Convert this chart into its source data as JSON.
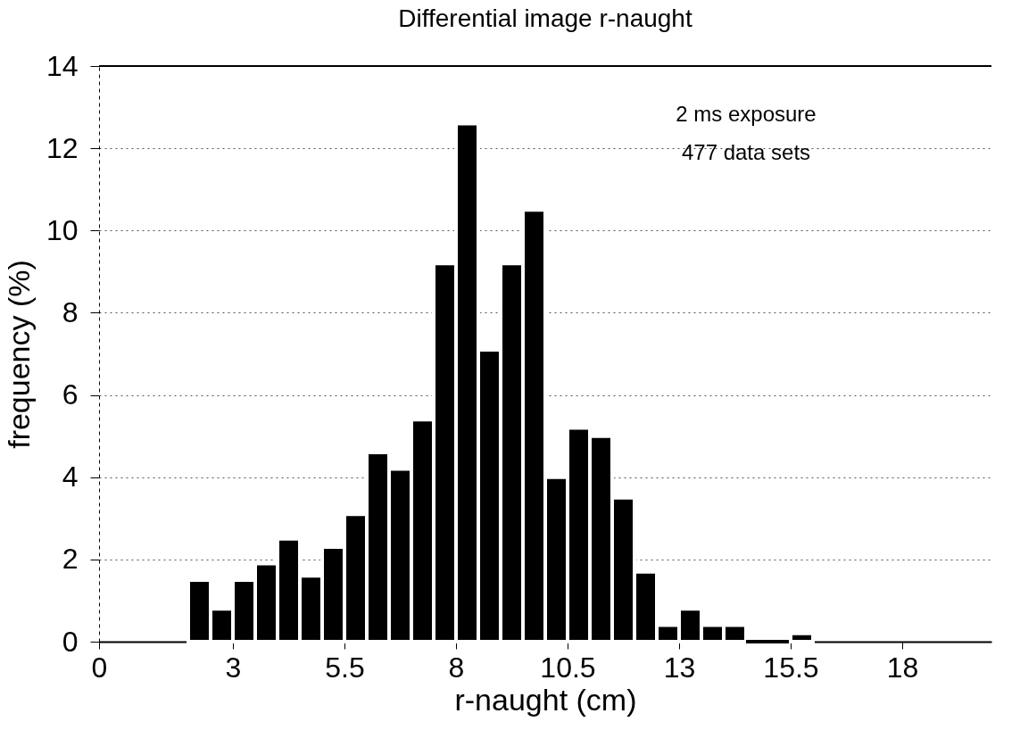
{
  "chart_data": {
    "type": "histogram",
    "title": "Differential image r-naught",
    "xlabel": "r-naught (cm)",
    "ylabel": "frequency (%)",
    "bins": [
      2,
      2.5,
      3,
      3.5,
      4,
      4.5,
      5,
      5.5,
      6,
      6.5,
      7,
      7.5,
      8,
      8.5,
      9,
      9.5,
      10,
      10.5,
      11,
      11.5,
      12,
      12.5,
      13,
      13.5,
      14,
      14.5,
      15,
      15.5,
      16
    ],
    "values": [
      1.5,
      0.8,
      1.5,
      1.9,
      2.5,
      1.6,
      2.3,
      3.1,
      4.6,
      4.2,
      5.4,
      9.2,
      12.6,
      7.1,
      9.2,
      10.5,
      4.0,
      5.2,
      5.0,
      3.5,
      1.7,
      0.4,
      0.8,
      0.4,
      0.4,
      0,
      0,
      0.2
    ],
    "color": "#000000",
    "xlim": [
      0,
      20
    ],
    "xticks": [
      0,
      3,
      5.5,
      8,
      10.5,
      13,
      15.5,
      18
    ],
    "ylim": [
      0,
      14
    ],
    "yticks": [
      0,
      2,
      4,
      6,
      8,
      10,
      12,
      14
    ],
    "grid": "y",
    "annotations": [
      "2 ms exposure",
      "477 data sets"
    ]
  }
}
